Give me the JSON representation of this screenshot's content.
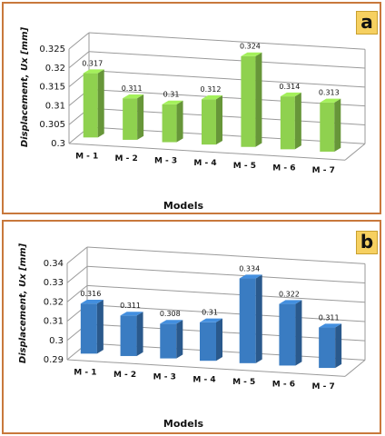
{
  "chart_data": [
    {
      "type": "bar",
      "panel_label": "a",
      "categories": [
        "M - 1",
        "M - 2",
        "M - 3",
        "M - 4",
        "M - 5",
        "M - 6",
        "M - 7"
      ],
      "values": [
        0.317,
        0.311,
        0.31,
        0.312,
        0.324,
        0.314,
        0.313
      ],
      "data_labels": [
        "0.317",
        "0.311",
        "0.31",
        "0.312",
        "0.324",
        "0.314",
        "0.313"
      ],
      "ylim": [
        0.3,
        0.325
      ],
      "yticks": [
        0.3,
        0.305,
        0.31,
        0.315,
        0.32,
        0.325
      ],
      "ytick_labels": [
        "0.3",
        "0.305",
        "0.31",
        "0.315",
        "0.32",
        "0.325"
      ],
      "xlabel": "Models",
      "ylabel": "Displacement, Ux [mm]",
      "grid": true,
      "color": "#8fd14f"
    },
    {
      "type": "bar",
      "panel_label": "b",
      "categories": [
        "M - 1",
        "M - 2",
        "M - 3",
        "M - 4",
        "M - 5",
        "M - 6",
        "M - 7"
      ],
      "values": [
        0.316,
        0.311,
        0.308,
        0.31,
        0.334,
        0.322,
        0.311
      ],
      "data_labels": [
        "0.316",
        "0.311",
        "0.308",
        "0.31",
        "0.334",
        "0.322",
        "0.311"
      ],
      "ylim": [
        0.29,
        0.34
      ],
      "yticks": [
        0.29,
        0.3,
        0.31,
        0.32,
        0.33,
        0.34
      ],
      "ytick_labels": [
        "0.29",
        "0.3",
        "0.31",
        "0.32",
        "0.33",
        "0.34"
      ],
      "xlabel": "Models",
      "ylabel": "Displacement, Ux [mm]",
      "grid": true,
      "color": "#3a7cc2"
    }
  ]
}
